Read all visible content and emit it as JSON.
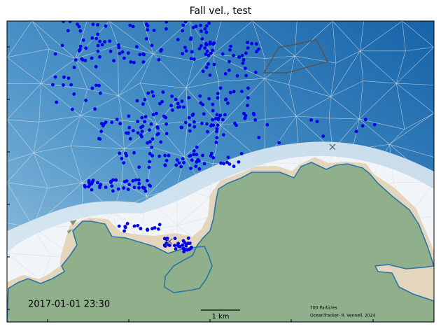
{
  "title": "Fall vel.,  test",
  "timestamp": "2017-01-01 23:30",
  "scale_bar": "1 km",
  "particle_count": "700 Particles",
  "credit": "OceanTracker- R. Vennell, 2024"
}
